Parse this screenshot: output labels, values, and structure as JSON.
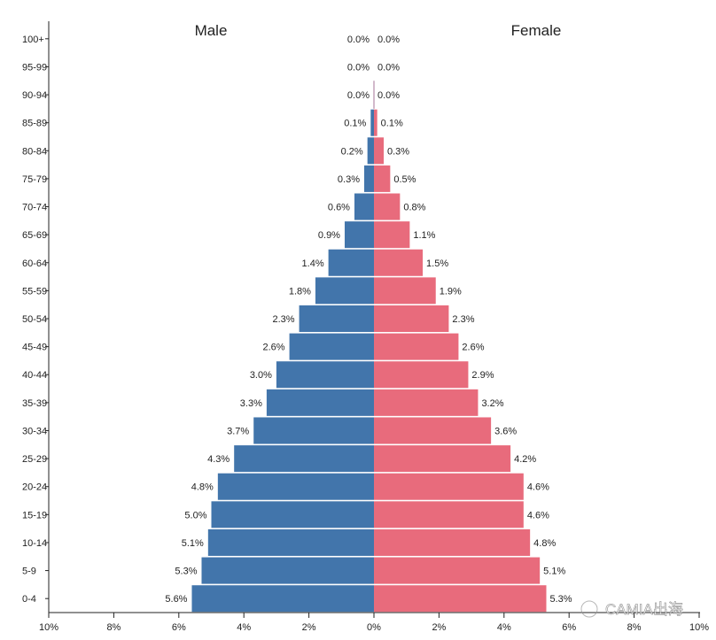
{
  "chart_data": {
    "type": "bar",
    "subtype": "population-pyramid",
    "categories": [
      "100+",
      "95-99",
      "90-94",
      "85-89",
      "80-84",
      "75-79",
      "70-74",
      "65-69",
      "60-64",
      "55-59",
      "50-54",
      "45-49",
      "40-44",
      "35-39",
      "30-34",
      "25-29",
      "20-24",
      "15-19",
      "10-14",
      "5-9",
      "0-4"
    ],
    "series": [
      {
        "name": "Male",
        "color": "#4275ab",
        "values": [
          0.0,
          0.0,
          0.0,
          0.1,
          0.2,
          0.3,
          0.6,
          0.9,
          1.4,
          1.8,
          2.3,
          2.6,
          3.0,
          3.3,
          3.7,
          4.3,
          4.8,
          5.0,
          5.1,
          5.3,
          5.6
        ]
      },
      {
        "name": "Female",
        "color": "#e86b7c",
        "values": [
          0.0,
          0.0,
          0.0,
          0.1,
          0.3,
          0.5,
          0.8,
          1.1,
          1.5,
          1.9,
          2.3,
          2.6,
          2.9,
          3.2,
          3.6,
          4.2,
          4.6,
          4.6,
          4.8,
          5.1,
          5.3
        ]
      }
    ],
    "data_labels": {
      "male": [
        "0.0%",
        "0.0%",
        "0.0%",
        "0.1%",
        "0.2%",
        "0.3%",
        "0.6%",
        "0.9%",
        "1.4%",
        "1.8%",
        "2.3%",
        "2.6%",
        "3.0%",
        "3.3%",
        "3.7%",
        "4.3%",
        "4.8%",
        "5.0%",
        "5.1%",
        "5.3%",
        "5.6%"
      ],
      "female": [
        "0.0%",
        "0.0%",
        "0.0%",
        "0.1%",
        "0.3%",
        "0.5%",
        "0.8%",
        "1.1%",
        "1.5%",
        "1.9%",
        "2.3%",
        "2.6%",
        "2.9%",
        "3.2%",
        "3.6%",
        "4.2%",
        "4.6%",
        "4.6%",
        "4.8%",
        "5.1%",
        "5.3%"
      ]
    },
    "x_ticks": [
      "10%",
      "8%",
      "6%",
      "4%",
      "2%",
      "0%",
      "2%",
      "4%",
      "6%",
      "8%",
      "10%"
    ],
    "x_tick_values": [
      -10,
      -8,
      -6,
      -4,
      -2,
      0,
      2,
      4,
      6,
      8,
      10
    ],
    "xlim": [
      -10,
      10
    ],
    "title": "",
    "xlabel": "",
    "ylabel": "",
    "grid": false,
    "legend": {
      "male_label": "Male",
      "female_label": "Female"
    }
  },
  "watermark": "CAMIA出海"
}
